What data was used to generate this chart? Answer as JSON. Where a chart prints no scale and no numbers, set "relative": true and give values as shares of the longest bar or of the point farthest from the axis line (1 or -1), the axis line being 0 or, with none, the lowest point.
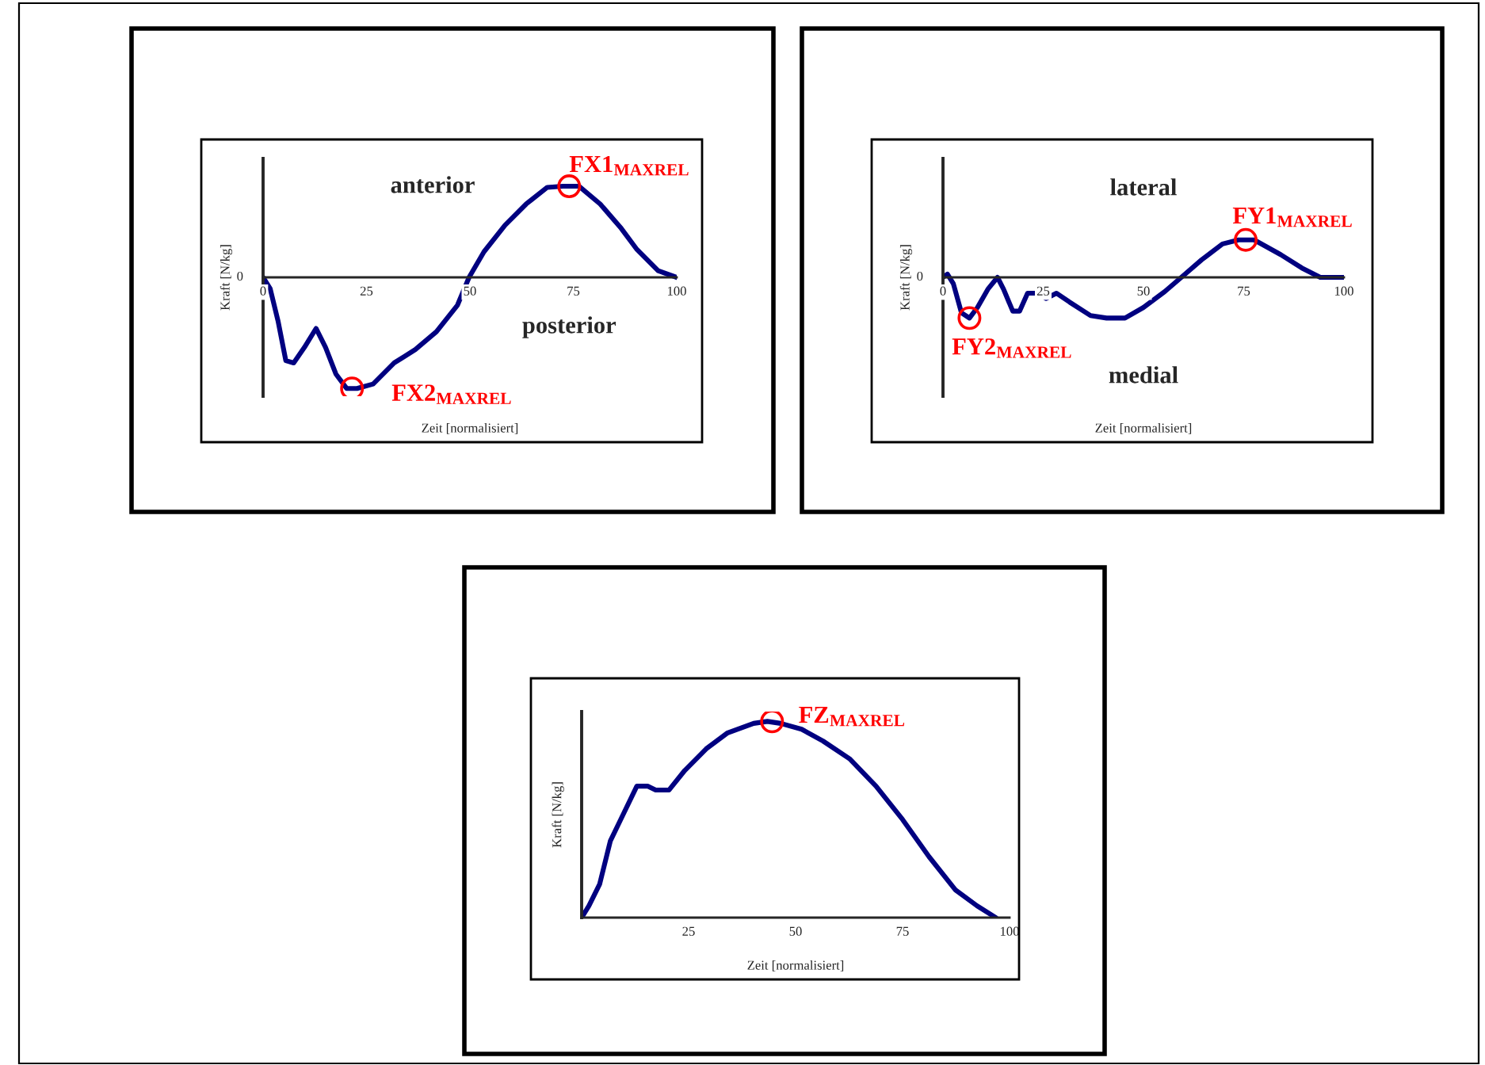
{
  "chart_data": [
    {
      "type": "line",
      "relative": true,
      "xlabel": "Zeit [normalisiert]",
      "ylabel": "Kraft [N/kg]",
      "xlim": [
        0,
        100
      ],
      "xticks": [
        0,
        25,
        50,
        75,
        100
      ],
      "series": [
        {
          "color": "#000080",
          "x": [
            0,
            1.7,
            3.6,
            5.5,
            7.4,
            10,
            12.8,
            15.1,
            17.6,
            20.2,
            22.7,
            26.6,
            31.7,
            36.8,
            41.9,
            47,
            49.8,
            53.4,
            58.5,
            63.6,
            68.7,
            72.5,
            76.4,
            81.5,
            86.6,
            90.4,
            95.5,
            100
          ],
          "values": [
            0,
            -0.1,
            -0.39,
            -0.75,
            -0.77,
            -0.63,
            -0.46,
            -0.63,
            -0.87,
            -1.0,
            -1.0,
            -0.96,
            -0.77,
            -0.65,
            -0.49,
            -0.25,
            0,
            0.23,
            0.47,
            0.66,
            0.81,
            0.82,
            0.82,
            0.66,
            0.44,
            0.25,
            0.06,
            0
          ]
        }
      ],
      "annotations": [
        "0",
        "anterior",
        "posterior",
        {
          "text": "FX1$_{MAXREL}$",
          "x": 74,
          "y": 0.82
        },
        {
          "text": "FX2$_{MAXREL}$",
          "x": 21.5,
          "y": -1.0
        }
      ]
    },
    {
      "type": "line",
      "relative": true,
      "xlabel": "Zeit [normalisiert]",
      "ylabel": "Kraft [N/kg]",
      "xlim": [
        0,
        100
      ],
      "xticks": [
        0,
        25,
        50,
        75,
        100
      ],
      "series": [
        {
          "color": "#000080",
          "x": [
            0,
            1.1,
            2.6,
            4.6,
            6.6,
            8.6,
            11.2,
            13.6,
            15.1,
            17.4,
            19.1,
            21.1,
            23.7,
            25.7,
            28.3,
            31.6,
            36.8,
            40.8,
            45.4,
            50,
            55.3,
            59.9,
            64.5,
            69.7,
            73.7,
            77.6,
            84.2,
            89.5,
            94.1,
            100
          ],
          "values": [
            0,
            0.08,
            -0.16,
            -0.87,
            -1.0,
            -0.74,
            -0.29,
            0,
            -0.29,
            -0.83,
            -0.83,
            -0.39,
            -0.39,
            -0.52,
            -0.39,
            -0.61,
            -0.94,
            -1.0,
            -1.0,
            -0.74,
            -0.35,
            0.04,
            0.43,
            0.82,
            0.92,
            0.92,
            0.56,
            0.23,
            0,
            0
          ]
        }
      ],
      "annotations": [
        "0",
        "lateral",
        "medial",
        {
          "text": "FY1$_{MAXREL}$",
          "x": 75.5,
          "y": 0.92
        },
        {
          "text": "FY2$_{MAXREL}$",
          "x": 6.6,
          "y": -1.0
        }
      ]
    },
    {
      "type": "line",
      "relative": true,
      "xlabel": "Zeit [normalisiert]",
      "ylabel": "Kraft [N/kg]",
      "xlim": [
        0,
        100
      ],
      "xticks": [
        25,
        50,
        75,
        100
      ],
      "series": [
        {
          "color": "#000080",
          "x": [
            0,
            1.7,
            4.2,
            6.7,
            9.8,
            12.9,
            15.4,
            17.3,
            20.4,
            24.1,
            29.1,
            34,
            40.2,
            43.4,
            46.5,
            51.4,
            56.4,
            62.6,
            68.8,
            75,
            81.2,
            87.4,
            92.4,
            96.8
          ],
          "values": [
            0,
            0.06,
            0.17,
            0.39,
            0.53,
            0.67,
            0.67,
            0.65,
            0.65,
            0.75,
            0.86,
            0.94,
            0.99,
            1.0,
            0.99,
            0.96,
            0.9,
            0.81,
            0.67,
            0.5,
            0.31,
            0.14,
            0.06,
            0
          ]
        }
      ],
      "annotations": [
        {
          "text": "FZ$_{MAXREL}$",
          "x": 44.5,
          "y": 1.0
        }
      ]
    }
  ]
}
